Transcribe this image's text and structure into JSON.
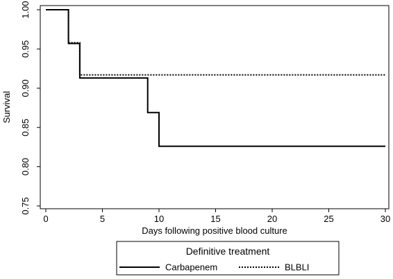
{
  "chart_data": {
    "type": "line",
    "xlabel": "Days following positive blood culture",
    "ylabel": "Survival",
    "xlim": [
      0,
      30
    ],
    "ylim": [
      0.75,
      1.0
    ],
    "xticks": [
      0,
      5,
      10,
      15,
      20,
      25,
      30
    ],
    "yticks": [
      0.75,
      0.8,
      0.85,
      0.9,
      0.95,
      1.0
    ],
    "grid": false,
    "legend_placement": "bottom",
    "legend_title": "Definitive treatment",
    "series": [
      {
        "name": "Carbapenem",
        "style": "solid",
        "step": true,
        "points": [
          {
            "x": 0,
            "y": 1.0
          },
          {
            "x": 2,
            "y": 0.957
          },
          {
            "x": 3,
            "y": 0.913
          },
          {
            "x": 9,
            "y": 0.869
          },
          {
            "x": 10,
            "y": 0.826
          },
          {
            "x": 30,
            "y": 0.826
          }
        ]
      },
      {
        "name": "BLBLI",
        "style": "dotted",
        "step": true,
        "points": [
          {
            "x": 0,
            "y": 1.0
          },
          {
            "x": 2,
            "y": 0.958
          },
          {
            "x": 3,
            "y": 0.917
          },
          {
            "x": 30,
            "y": 0.917
          }
        ]
      }
    ]
  }
}
